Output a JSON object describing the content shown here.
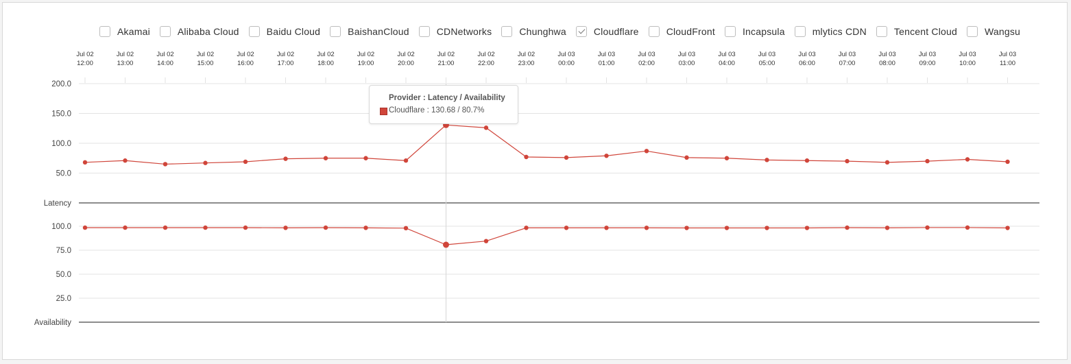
{
  "legend": {
    "items": [
      {
        "label": "Akamai",
        "checked": false
      },
      {
        "label": "Alibaba Cloud",
        "checked": false
      },
      {
        "label": "Baidu Cloud",
        "checked": false
      },
      {
        "label": "BaishanCloud",
        "checked": false
      },
      {
        "label": "CDNetworks",
        "checked": false
      },
      {
        "label": "Chunghwa",
        "checked": false
      },
      {
        "label": "Cloudflare",
        "checked": true
      },
      {
        "label": "CloudFront",
        "checked": false
      },
      {
        "label": "Incapsula",
        "checked": false
      },
      {
        "label": "mlytics CDN",
        "checked": false
      },
      {
        "label": "Tencent Cloud",
        "checked": false
      },
      {
        "label": "Wangsu",
        "checked": false
      }
    ]
  },
  "tooltip": {
    "title": "Provider : Latency / Availability",
    "line": "Cloudflare : 130.68 / 80.7%"
  },
  "chart_data": {
    "type": "line",
    "series_color": "#d0453a",
    "x": [
      {
        "date": "Jul 02",
        "time": "12:00"
      },
      {
        "date": "Jul 02",
        "time": "13:00"
      },
      {
        "date": "Jul 02",
        "time": "14:00"
      },
      {
        "date": "Jul 02",
        "time": "15:00"
      },
      {
        "date": "Jul 02",
        "time": "16:00"
      },
      {
        "date": "Jul 02",
        "time": "17:00"
      },
      {
        "date": "Jul 02",
        "time": "18:00"
      },
      {
        "date": "Jul 02",
        "time": "19:00"
      },
      {
        "date": "Jul 02",
        "time": "20:00"
      },
      {
        "date": "Jul 02",
        "time": "21:00"
      },
      {
        "date": "Jul 02",
        "time": "22:00"
      },
      {
        "date": "Jul 02",
        "time": "23:00"
      },
      {
        "date": "Jul 03",
        "time": "00:00"
      },
      {
        "date": "Jul 03",
        "time": "01:00"
      },
      {
        "date": "Jul 03",
        "time": "02:00"
      },
      {
        "date": "Jul 03",
        "time": "03:00"
      },
      {
        "date": "Jul 03",
        "time": "04:00"
      },
      {
        "date": "Jul 03",
        "time": "05:00"
      },
      {
        "date": "Jul 03",
        "time": "06:00"
      },
      {
        "date": "Jul 03",
        "time": "07:00"
      },
      {
        "date": "Jul 03",
        "time": "08:00"
      },
      {
        "date": "Jul 03",
        "time": "09:00"
      },
      {
        "date": "Jul 03",
        "time": "10:00"
      },
      {
        "date": "Jul 03",
        "time": "11:00"
      }
    ],
    "panels": [
      {
        "name": "Latency",
        "ylim": [
          0,
          200
        ],
        "yticks": [
          "200.0",
          "150.0",
          "100.0",
          "50.0"
        ],
        "ytick_values": [
          200,
          150,
          100,
          50
        ],
        "series": [
          {
            "name": "Cloudflare",
            "values": [
              68,
              71,
              65,
              67,
              69,
              74,
              75,
              75,
              71,
              130.68,
              126,
              77,
              76,
              79,
              87,
              76,
              75,
              72,
              71,
              70,
              68,
              70,
              73,
              69
            ]
          }
        ]
      },
      {
        "name": "Availability",
        "ylim": [
          0,
          100
        ],
        "yticks": [
          "100.0",
          "75.0",
          "50.0",
          "25.0"
        ],
        "ytick_values": [
          100,
          75,
          50,
          25
        ],
        "series": [
          {
            "name": "Cloudflare",
            "values": [
              98.5,
              98.5,
              98.5,
              98.5,
              98.5,
              98.3,
              98.5,
              98.3,
              98.0,
              80.7,
              84.5,
              98.3,
              98.3,
              98.3,
              98.3,
              98.2,
              98.2,
              98.2,
              98.2,
              98.5,
              98.3,
              98.6,
              98.6,
              98.2
            ]
          }
        ]
      }
    ],
    "highlight_index": 9
  }
}
